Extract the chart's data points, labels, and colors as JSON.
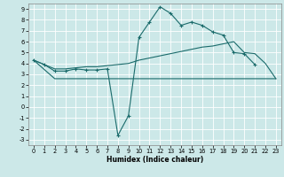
{
  "xlabel": "Humidex (Indice chaleur)",
  "bg_color": "#cce8e8",
  "line_color": "#1a6b6b",
  "grid_color": "#ffffff",
  "xlim": [
    -0.5,
    23.5
  ],
  "ylim": [
    -3.5,
    9.5
  ],
  "yticks": [
    -3,
    -2,
    -1,
    0,
    1,
    2,
    3,
    4,
    5,
    6,
    7,
    8,
    9
  ],
  "xticks": [
    0,
    1,
    2,
    3,
    4,
    5,
    6,
    7,
    8,
    9,
    10,
    11,
    12,
    13,
    14,
    15,
    16,
    17,
    18,
    19,
    20,
    21,
    22,
    23
  ],
  "series1_x": [
    0,
    1,
    2,
    3,
    4,
    5,
    6,
    7,
    8,
    9,
    10,
    11,
    12,
    13,
    14,
    15,
    16,
    17,
    18,
    19,
    20,
    21
  ],
  "series1_y": [
    4.3,
    3.9,
    3.3,
    3.3,
    3.5,
    3.4,
    3.4,
    3.5,
    -2.6,
    -0.8,
    6.4,
    7.8,
    9.2,
    8.6,
    7.5,
    7.8,
    7.5,
    6.9,
    6.6,
    5.0,
    4.9,
    3.9
  ],
  "series2_x": [
    0,
    1,
    2,
    3,
    4,
    5,
    6,
    7,
    8,
    9,
    10,
    11,
    12,
    13,
    14,
    15,
    16,
    17,
    18,
    19,
    20,
    21,
    22,
    23
  ],
  "series2_y": [
    4.3,
    3.9,
    3.5,
    3.5,
    3.6,
    3.7,
    3.7,
    3.8,
    3.9,
    4.0,
    4.3,
    4.5,
    4.7,
    4.9,
    5.1,
    5.3,
    5.5,
    5.6,
    5.8,
    6.0,
    5.0,
    4.9,
    4.0,
    2.6
  ],
  "series3_x": [
    0,
    2,
    9,
    22,
    23
  ],
  "series3_y": [
    4.3,
    2.6,
    2.6,
    2.6,
    2.6
  ],
  "xlabel_fontsize": 5.5,
  "tick_fontsize": 4.8,
  "linewidth": 0.8,
  "marker_size": 2.5
}
